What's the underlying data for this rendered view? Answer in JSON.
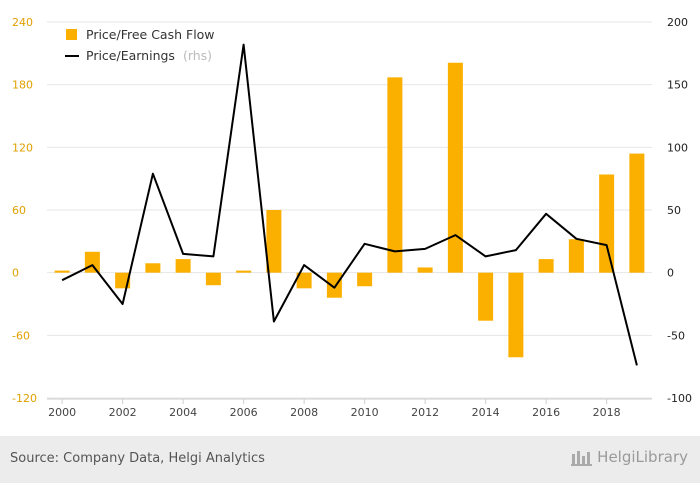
{
  "chart_data": {
    "type": "bar+line",
    "x_labels": [
      "2000",
      "2002",
      "2004",
      "2006",
      "2008",
      "2010",
      "2012",
      "2014",
      "2016",
      "2018"
    ],
    "years": [
      2000,
      2001,
      2002,
      2003,
      2004,
      2005,
      2006,
      2007,
      2008,
      2009,
      2010,
      2011,
      2012,
      2013,
      2014,
      2015,
      2016,
      2017,
      2018,
      2019
    ],
    "series": [
      {
        "name": "Price/Free Cash Flow",
        "kind": "bar",
        "axis": "left",
        "color": "#fbb000",
        "values": [
          2,
          20,
          -15,
          9,
          13,
          -12,
          2,
          60,
          -15,
          -24,
          -13,
          187,
          5,
          201,
          -46,
          -81,
          13,
          32,
          94,
          114
        ]
      },
      {
        "name": "Price/Earnings",
        "legend_suffix": "(rhs)",
        "kind": "line",
        "axis": "right",
        "color": "#000000",
        "values": [
          -6,
          6,
          -25,
          79,
          15,
          13,
          182,
          -39,
          6,
          -12,
          23,
          17,
          19,
          30,
          13,
          18,
          47,
          27,
          22,
          -74
        ]
      }
    ],
    "y_left": {
      "ticks": [
        240,
        180,
        120,
        60,
        0,
        -60,
        -120
      ],
      "min": -120,
      "max": 240
    },
    "y_right": {
      "ticks": [
        200,
        150,
        100,
        50,
        0,
        -50,
        -100
      ],
      "min": -100,
      "max": 200
    },
    "colors": {
      "left_axis_text": "#e0a000",
      "right_axis_text": "#222222",
      "grid": "#e6e6e6"
    }
  },
  "footer": {
    "source": "Source: Company Data, Helgi Analytics",
    "brand": "HelgiLibrary"
  }
}
